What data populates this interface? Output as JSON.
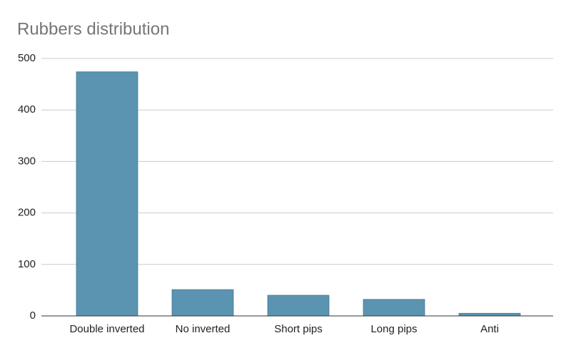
{
  "chart_data": {
    "type": "bar",
    "title": "Rubbers distribution",
    "categories": [
      "Double inverted",
      "No inverted",
      "Short pips",
      "Long pips",
      "Anti"
    ],
    "values": [
      474,
      51,
      40,
      32,
      5
    ],
    "color": "#5b94b1",
    "ylim": [
      0,
      500
    ],
    "yticks": [
      0,
      100,
      200,
      300,
      400,
      500
    ],
    "grid": true
  }
}
